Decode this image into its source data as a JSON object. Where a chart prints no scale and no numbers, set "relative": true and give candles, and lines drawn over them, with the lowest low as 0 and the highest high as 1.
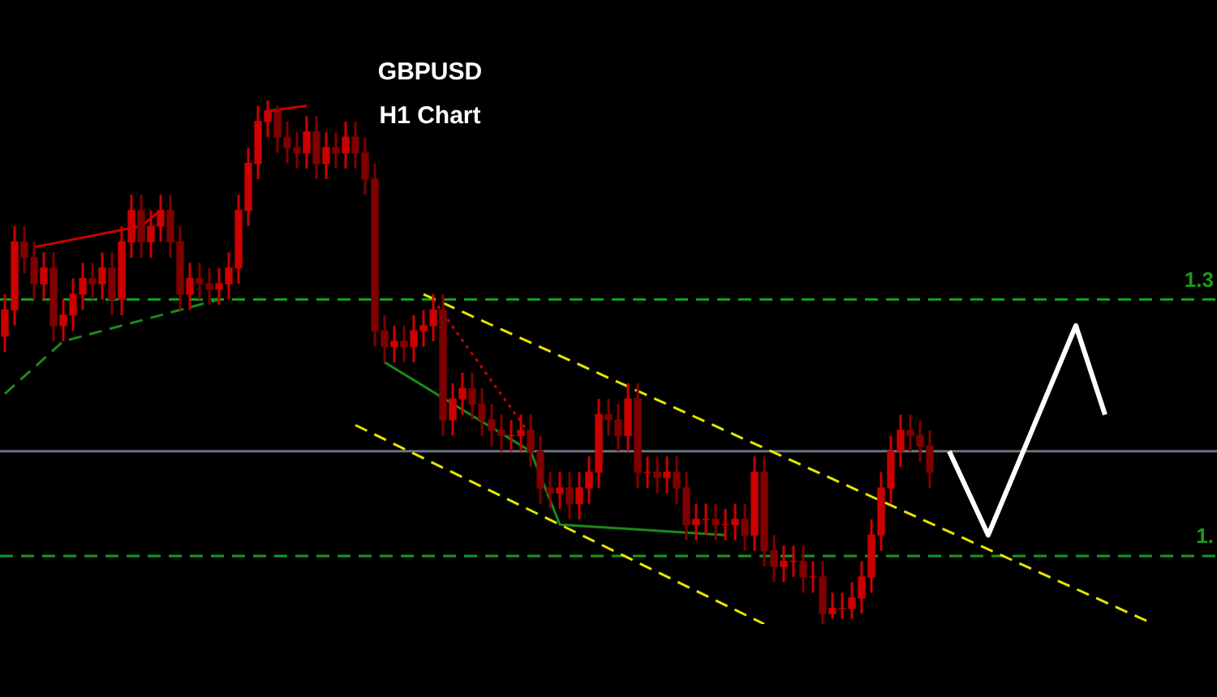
{
  "chart_data": {
    "type": "candlestick",
    "title": "GBPUSD",
    "subtitle": "H1 Chart",
    "relative": true,
    "tick_labels": false,
    "legend": false,
    "colors": [
      "#cc0000",
      "#cc0000",
      "#7e0000",
      "#7e0000",
      "#cc0000",
      "#7e0000",
      "#cc0000",
      "#cc0000",
      "#cc0000",
      "#7e0000",
      "#cc0000",
      "#7e0000",
      "#cc0000",
      "#cc0000",
      "#7e0000",
      "#cc0000",
      "#cc0000",
      "#7e0000",
      "#7e0000",
      "#cc0000",
      "#7e0000",
      "#7e0000",
      "#cc0000",
      "#cc0000",
      "#cc0000",
      "#cc0000",
      "#cc0000",
      "#cc0000",
      "#7e0000",
      "#7e0000",
      "#7e0000",
      "#cc0000",
      "#7e0000",
      "#cc0000",
      "#7e0000",
      "#cc0000",
      "#7e0000",
      "#7e0000",
      "#7e0000",
      "#7e0000",
      "#cc0000",
      "#7e0000",
      "#cc0000",
      "#cc0000",
      "#cc0000",
      "#7e0000",
      "#cc0000",
      "#cc0000",
      "#7e0000",
      "#7e0000",
      "#7e0000",
      "#7e0000",
      "#cc0000",
      "#cc0000",
      "#7e0000",
      "#7e0000",
      "#7e0000",
      "#cc0000",
      "#7e0000",
      "#cc0000",
      "#cc0000",
      "#cc0000",
      "#7e0000",
      "#7e0000",
      "#cc0000",
      "#7e0000",
      "#cc0000",
      "#7e0000",
      "#cc0000",
      "#7e0000",
      "#7e0000",
      "#cc0000",
      "#cc0000",
      "#7e0000",
      "#cc0000",
      "#cc0000",
      "#7e0000",
      "#cc0000",
      "#7e0000",
      "#7e0000",
      "#cc0000",
      "#cc0000",
      "#7e0000",
      "#cc0000",
      "#7e0000",
      "#cc0000",
      "#cc0000",
      "#cc0000",
      "#cc0000",
      "#cc0000",
      "#cc0000",
      "#cc0000",
      "#cc0000",
      "#7e0000",
      "#7e0000",
      "#7e0000",
      null,
      null,
      null,
      null,
      null,
      null,
      null,
      null,
      null,
      null,
      null,
      null,
      null,
      null,
      null,
      null,
      null,
      null,
      null,
      null,
      null,
      null,
      null,
      null,
      null,
      null,
      null,
      null,
      null
    ],
    "annotations": [
      {
        "text": "1.3",
        "y": 0.62
      },
      {
        "text": "1.",
        "y": 0.13
      }
    ],
    "categories": [
      null,
      null,
      null,
      null,
      null,
      null,
      null,
      null,
      null,
      null,
      null,
      null,
      null,
      null,
      null,
      null,
      null,
      null,
      null,
      null,
      null,
      null,
      null,
      null,
      null,
      null,
      null,
      null,
      null,
      null,
      null,
      null,
      null,
      null,
      null,
      null,
      null,
      null,
      null,
      null,
      null,
      null,
      null,
      null,
      null,
      null,
      null,
      null,
      null,
      null,
      null,
      null,
      null,
      null,
      null,
      null,
      null,
      null,
      null,
      null,
      null,
      null,
      null,
      null,
      null,
      null,
      null,
      null,
      null,
      null,
      null,
      null,
      null,
      null,
      null,
      null,
      null,
      null,
      null,
      null,
      null,
      null,
      null,
      null,
      null,
      null,
      null,
      null,
      null,
      null,
      null,
      null,
      null,
      null,
      null,
      null,
      null,
      null,
      null,
      null,
      null,
      null,
      null,
      null,
      null,
      null,
      null,
      null,
      null,
      null,
      null,
      null,
      null,
      null,
      null,
      null,
      null,
      null,
      null,
      null,
      null,
      null,
      null,
      null,
      null
    ],
    "ohlc": [
      [
        0.55,
        0.63,
        0.52,
        0.6
      ],
      [
        0.6,
        0.76,
        0.57,
        0.73
      ],
      [
        0.73,
        0.76,
        0.67,
        0.7
      ],
      [
        0.7,
        0.73,
        0.62,
        0.65
      ],
      [
        0.65,
        0.71,
        0.62,
        0.68
      ],
      [
        0.68,
        0.71,
        0.54,
        0.57
      ],
      [
        0.57,
        0.62,
        0.54,
        0.59
      ],
      [
        0.59,
        0.66,
        0.56,
        0.63
      ],
      [
        0.63,
        0.69,
        0.6,
        0.66
      ],
      [
        0.66,
        0.69,
        0.62,
        0.65
      ],
      [
        0.65,
        0.71,
        0.62,
        0.68
      ],
      [
        0.68,
        0.71,
        0.59,
        0.62
      ],
      [
        0.62,
        0.76,
        0.59,
        0.73
      ],
      [
        0.73,
        0.82,
        0.7,
        0.79
      ],
      [
        0.79,
        0.82,
        0.7,
        0.73
      ],
      [
        0.73,
        0.79,
        0.7,
        0.76
      ],
      [
        0.76,
        0.82,
        0.73,
        0.79
      ],
      [
        0.79,
        0.82,
        0.7,
        0.73
      ],
      [
        0.73,
        0.76,
        0.6,
        0.63
      ],
      [
        0.63,
        0.69,
        0.6,
        0.66
      ],
      [
        0.66,
        0.69,
        0.62,
        0.65
      ],
      [
        0.65,
        0.68,
        0.61,
        0.64
      ],
      [
        0.64,
        0.68,
        0.61,
        0.65
      ],
      [
        0.65,
        0.71,
        0.62,
        0.68
      ],
      [
        0.68,
        0.82,
        0.65,
        0.79
      ],
      [
        0.79,
        0.91,
        0.76,
        0.88
      ],
      [
        0.88,
        0.99,
        0.85,
        0.96
      ],
      [
        0.96,
        1,
        0.93,
        0.98
      ],
      [
        0.98,
        0.99,
        0.9,
        0.93
      ],
      [
        0.93,
        0.96,
        0.88,
        0.91
      ],
      [
        0.91,
        0.94,
        0.87,
        0.9
      ],
      [
        0.9,
        0.97,
        0.87,
        0.94
      ],
      [
        0.94,
        0.97,
        0.85,
        0.88
      ],
      [
        0.88,
        0.94,
        0.85,
        0.91
      ],
      [
        0.91,
        0.94,
        0.87,
        0.9
      ],
      [
        0.9,
        0.96,
        0.87,
        0.93
      ],
      [
        0.93,
        0.96,
        0.87,
        0.9
      ],
      [
        0.9,
        0.93,
        0.82,
        0.85
      ],
      [
        0.85,
        0.88,
        0.53,
        0.56
      ],
      [
        0.56,
        0.59,
        0.5,
        0.53
      ],
      [
        0.53,
        0.57,
        0.5,
        0.54
      ],
      [
        0.54,
        0.57,
        0.5,
        0.53
      ],
      [
        0.53,
        0.59,
        0.5,
        0.56
      ],
      [
        0.56,
        0.6,
        0.53,
        0.57
      ],
      [
        0.57,
        0.63,
        0.54,
        0.6
      ],
      [
        0.6,
        0.63,
        0.36,
        0.39
      ],
      [
        0.39,
        0.46,
        0.36,
        0.43
      ],
      [
        0.43,
        0.48,
        0.4,
        0.45
      ],
      [
        0.45,
        0.48,
        0.39,
        0.42
      ],
      [
        0.42,
        0.45,
        0.36,
        0.39
      ],
      [
        0.39,
        0.42,
        0.34,
        0.37
      ],
      [
        0.37,
        0.4,
        0.33,
        0.36
      ],
      [
        0.36,
        0.39,
        0.33,
        0.36
      ],
      [
        0.36,
        0.4,
        0.33,
        0.37
      ],
      [
        0.37,
        0.4,
        0.3,
        0.33
      ],
      [
        0.33,
        0.36,
        0.23,
        0.26
      ],
      [
        0.26,
        0.29,
        0.22,
        0.25
      ],
      [
        0.25,
        0.29,
        0.22,
        0.26
      ],
      [
        0.26,
        0.29,
        0.2,
        0.23
      ],
      [
        0.23,
        0.29,
        0.2,
        0.26
      ],
      [
        0.26,
        0.32,
        0.23,
        0.29
      ],
      [
        0.29,
        0.43,
        0.26,
        0.4
      ],
      [
        0.4,
        0.43,
        0.36,
        0.39
      ],
      [
        0.39,
        0.42,
        0.33,
        0.36
      ],
      [
        0.36,
        0.46,
        0.33,
        0.43
      ],
      [
        0.43,
        0.46,
        0.26,
        0.29
      ],
      [
        0.29,
        0.32,
        0.26,
        0.29
      ],
      [
        0.29,
        0.32,
        0.25,
        0.28
      ],
      [
        0.28,
        0.32,
        0.25,
        0.29
      ],
      [
        0.29,
        0.32,
        0.23,
        0.26
      ],
      [
        0.26,
        0.29,
        0.16,
        0.19
      ],
      [
        0.19,
        0.23,
        0.16,
        0.2
      ],
      [
        0.2,
        0.23,
        0.17,
        0.2
      ],
      [
        0.2,
        0.23,
        0.16,
        0.19
      ],
      [
        0.19,
        0.22,
        0.16,
        0.19
      ],
      [
        0.19,
        0.23,
        0.16,
        0.2
      ],
      [
        0.2,
        0.23,
        0.14,
        0.17
      ],
      [
        0.17,
        0.32,
        0.14,
        0.29
      ],
      [
        0.29,
        0.32,
        0.11,
        0.14
      ],
      [
        0.14,
        0.17,
        0.08,
        0.11
      ],
      [
        0.11,
        0.15,
        0.08,
        0.12
      ],
      [
        0.12,
        0.15,
        0.09,
        0.12
      ],
      [
        0.12,
        0.15,
        0.06,
        0.09
      ],
      [
        0.09,
        0.12,
        0.06,
        0.09
      ],
      [
        0.09,
        0.12,
        0,
        0.02
      ],
      [
        0.02,
        0.06,
        0.01,
        0.03
      ],
      [
        0.03,
        0.06,
        0.01,
        0.03
      ],
      [
        0.03,
        0.08,
        0.01,
        0.05
      ],
      [
        0.05,
        0.12,
        0.02,
        0.09
      ],
      [
        0.09,
        0.2,
        0.06,
        0.17
      ],
      [
        0.17,
        0.29,
        0.14,
        0.26
      ],
      [
        0.26,
        0.36,
        0.23,
        0.33
      ],
      [
        0.33,
        0.4,
        0.3,
        0.37
      ],
      [
        0.37,
        0.4,
        0.33,
        0.36
      ],
      [
        0.36,
        0.39,
        0.31,
        0.34
      ],
      [
        0.34,
        0.37,
        0.26,
        0.29
      ],
      null,
      null,
      null,
      null,
      null,
      null,
      null,
      null,
      null,
      null,
      null,
      null,
      null,
      null,
      null,
      null,
      null,
      null,
      null,
      null,
      null,
      null,
      null,
      null,
      null,
      null,
      null,
      null,
      null
    ],
    "series": [
      {
        "type": "line",
        "color": "#e6e600",
        "line_style": "dashed",
        "values": [
          null,
          null,
          null,
          null,
          null,
          null,
          null,
          null,
          null,
          null,
          null,
          null,
          null,
          null,
          null,
          null,
          null,
          null,
          null,
          null,
          null,
          null,
          null,
          null,
          null,
          null,
          null,
          null,
          null,
          null,
          null,
          null,
          null,
          null,
          null,
          null,
          null,
          null,
          null,
          null,
          null,
          null,
          null,
          0.63,
          null,
          null,
          null,
          null,
          null,
          null,
          null,
          null,
          null,
          null,
          null,
          null,
          null,
          null,
          null,
          null,
          null,
          null,
          null,
          null,
          null,
          null,
          null,
          null,
          null,
          null,
          null,
          null,
          null,
          null,
          null,
          null,
          null,
          null,
          null,
          null,
          null,
          null,
          null,
          null,
          null,
          null,
          null,
          null,
          null,
          null,
          null,
          null,
          null,
          null,
          null,
          null,
          null,
          null,
          null,
          null,
          null,
          null,
          null,
          null,
          null,
          null,
          null,
          null,
          null,
          null,
          null,
          null,
          null,
          null,
          null,
          null,
          null,
          null,
          0,
          null,
          null,
          null,
          null,
          null,
          null
        ]
      },
      {
        "type": "line",
        "color": "#e6e600",
        "line_style": "dashed",
        "values": [
          null,
          null,
          null,
          null,
          null,
          null,
          null,
          null,
          null,
          null,
          null,
          null,
          null,
          null,
          null,
          null,
          null,
          null,
          null,
          null,
          null,
          null,
          null,
          null,
          null,
          null,
          null,
          null,
          null,
          null,
          null,
          null,
          null,
          null,
          null,
          null,
          0.38,
          null,
          null,
          null,
          null,
          null,
          null,
          null,
          null,
          null,
          null,
          null,
          null,
          null,
          null,
          null,
          null,
          null,
          null,
          null,
          null,
          null,
          null,
          null,
          null,
          null,
          null,
          null,
          null,
          null,
          null,
          null,
          null,
          null,
          null,
          null,
          null,
          null,
          null,
          null,
          null,
          null,
          0,
          null,
          null,
          null,
          null,
          null,
          null,
          null,
          null,
          null,
          null,
          null,
          null,
          null,
          null,
          null,
          null,
          null,
          null,
          null,
          null,
          null,
          null,
          null,
          null,
          null,
          null,
          null,
          null,
          null,
          null,
          null,
          null,
          null,
          null,
          null,
          null,
          null,
          null,
          null,
          null,
          null,
          null,
          null,
          null,
          null,
          null
        ]
      },
      {
        "type": "line",
        "color": "#ffffff",
        "line_style": "solid",
        "values": [
          null,
          null,
          null,
          null,
          null,
          null,
          null,
          null,
          null,
          null,
          null,
          null,
          null,
          null,
          null,
          null,
          null,
          null,
          null,
          null,
          null,
          null,
          null,
          null,
          null,
          null,
          null,
          null,
          null,
          null,
          null,
          null,
          null,
          null,
          null,
          null,
          null,
          null,
          null,
          null,
          null,
          null,
          null,
          null,
          null,
          null,
          null,
          null,
          null,
          null,
          null,
          null,
          null,
          null,
          null,
          null,
          null,
          null,
          null,
          null,
          null,
          null,
          null,
          null,
          null,
          null,
          null,
          null,
          null,
          null,
          null,
          null,
          null,
          null,
          null,
          null,
          null,
          null,
          null,
          null,
          null,
          null,
          null,
          null,
          null,
          null,
          null,
          null,
          null,
          null,
          null,
          null,
          null,
          null,
          null,
          null,
          null,
          0.33,
          null,
          null,
          null,
          0.17,
          null,
          null,
          null,
          null,
          null,
          null,
          null,
          null,
          0.57,
          null,
          null,
          0.4,
          null,
          null,
          null,
          null,
          null,
          null,
          null,
          null,
          null,
          null,
          null
        ]
      },
      {
        "type": "line",
        "color": "#cc0000",
        "line_style": "solid",
        "values": [
          null,
          null,
          null,
          0.72,
          null,
          null,
          null,
          null,
          null,
          null,
          null,
          null,
          null,
          null,
          0.76,
          null,
          0.79,
          null,
          null,
          null,
          null,
          null,
          null,
          null,
          null,
          null,
          null,
          null,
          null,
          null,
          null,
          null,
          null,
          null,
          null,
          null,
          null,
          null,
          null,
          null,
          null,
          null,
          null,
          null,
          null,
          null,
          null,
          null,
          null,
          null,
          null,
          null,
          null,
          null,
          null,
          null,
          null,
          null,
          null,
          null,
          null,
          null,
          null,
          null,
          null,
          null,
          null,
          null,
          null,
          null,
          null,
          null,
          null,
          null,
          null,
          null,
          null,
          null,
          null,
          null,
          null,
          null,
          null,
          null,
          null,
          null,
          null,
          null,
          null,
          null,
          null,
          null,
          null,
          null,
          null,
          null,
          null,
          null,
          null,
          null,
          null,
          null,
          null,
          null,
          null,
          null,
          null,
          null,
          null,
          null,
          null,
          null,
          null,
          null,
          null,
          null,
          null,
          null,
          null,
          null,
          null,
          null,
          null,
          null,
          null
        ]
      },
      {
        "type": "line",
        "color": "#cc0000",
        "line_style": "solid",
        "values": [
          null,
          null,
          null,
          null,
          null,
          null,
          null,
          null,
          null,
          null,
          null,
          null,
          null,
          null,
          null,
          null,
          null,
          null,
          null,
          null,
          null,
          null,
          null,
          null,
          null,
          null,
          null,
          0.98,
          null,
          null,
          null,
          0.99,
          null,
          null,
          null,
          null,
          null,
          null,
          null,
          null,
          null,
          null,
          null,
          null,
          null,
          null,
          null,
          null,
          null,
          null,
          null,
          null,
          null,
          null,
          null,
          null,
          null,
          null,
          null,
          null,
          null,
          null,
          null,
          null,
          null,
          null,
          null,
          null,
          null,
          null,
          null,
          null,
          null,
          null,
          null,
          null,
          null,
          null,
          null,
          null,
          null,
          null,
          null,
          null,
          null,
          null,
          null,
          null,
          null,
          null,
          null,
          null,
          null,
          null,
          null,
          null,
          null,
          null,
          null,
          null,
          null,
          null,
          null,
          null,
          null,
          null,
          null,
          null,
          null,
          null,
          null,
          null,
          null,
          null,
          null,
          null,
          null,
          null,
          null,
          null,
          null,
          null,
          null,
          null,
          null
        ]
      },
      {
        "type": "line",
        "color": "#cc0000",
        "line_style": "dotted",
        "values": [
          null,
          null,
          null,
          null,
          null,
          null,
          null,
          null,
          null,
          null,
          null,
          null,
          null,
          null,
          null,
          null,
          null,
          null,
          null,
          null,
          null,
          null,
          null,
          null,
          null,
          null,
          null,
          null,
          null,
          null,
          null,
          null,
          null,
          null,
          null,
          null,
          null,
          null,
          null,
          null,
          null,
          null,
          null,
          null,
          0.62,
          null,
          null,
          null,
          null,
          null,
          null,
          null,
          null,
          null,
          0.36,
          null,
          null,
          null,
          null,
          null,
          null,
          null,
          null,
          null,
          null,
          null,
          null,
          null,
          null,
          null,
          null,
          null,
          null,
          null,
          null,
          null,
          null,
          null,
          null,
          null,
          null,
          null,
          null,
          null,
          null,
          null,
          null,
          null,
          null,
          null,
          null,
          null,
          null,
          null,
          null,
          null,
          null,
          null,
          null,
          null,
          null,
          null,
          null,
          null,
          null,
          null,
          null,
          null,
          null,
          null,
          null,
          null,
          null,
          null,
          null,
          null,
          null,
          null,
          null,
          null,
          null,
          null,
          null,
          null,
          null
        ]
      },
      {
        "type": "line",
        "color": "#1a8a1a",
        "line_style": "dashed",
        "values": [
          0.44,
          null,
          null,
          null,
          null,
          null,
          0.54,
          null,
          null,
          null,
          null,
          null,
          null,
          null,
          null,
          null,
          null,
          null,
          null,
          null,
          null,
          null,
          0.62,
          null,
          null,
          null,
          null,
          null,
          null,
          null,
          null,
          null,
          null,
          null,
          null,
          null,
          null,
          null,
          null,
          null,
          null,
          null,
          null,
          null,
          null,
          null,
          null,
          null,
          null,
          null,
          null,
          null,
          null,
          null,
          null,
          null,
          null,
          null,
          null,
          null,
          null,
          null,
          null,
          null,
          null,
          null,
          null,
          null,
          null,
          null,
          null,
          null,
          null,
          null,
          null,
          null,
          null,
          null,
          null,
          null,
          null,
          null,
          null,
          null,
          null,
          null,
          null,
          null,
          null,
          null,
          null,
          null,
          null,
          null,
          null,
          null,
          null,
          null,
          null,
          null,
          null,
          null,
          null,
          null,
          null,
          null,
          null,
          null,
          null,
          null,
          null,
          null,
          null,
          null,
          null,
          null,
          null,
          null,
          null,
          null,
          null,
          null,
          null,
          null,
          null
        ]
      },
      {
        "type": "line",
        "color": "#1a8a1a",
        "line_style": "solid",
        "values": [
          null,
          null,
          null,
          null,
          null,
          null,
          null,
          null,
          null,
          null,
          null,
          null,
          null,
          null,
          null,
          null,
          null,
          null,
          null,
          null,
          null,
          null,
          null,
          null,
          null,
          null,
          null,
          null,
          null,
          null,
          null,
          null,
          null,
          null,
          null,
          null,
          null,
          null,
          null,
          0.5,
          null,
          null,
          null,
          null,
          null,
          null,
          null,
          null,
          null,
          null,
          null,
          null,
          null,
          null,
          0.33,
          null,
          null,
          0.19,
          null,
          null,
          null,
          null,
          null,
          null,
          null,
          null,
          null,
          null,
          null,
          null,
          null,
          null,
          null,
          null,
          0.17,
          null,
          null,
          null,
          null,
          null,
          null,
          null,
          null,
          null,
          null,
          null,
          null,
          null,
          null,
          null,
          null,
          null,
          null,
          null,
          null,
          null,
          null,
          null,
          null,
          null,
          null,
          null,
          null,
          null,
          null,
          null,
          null,
          null,
          null,
          null,
          null,
          null,
          null,
          null,
          null,
          null,
          null,
          null,
          null,
          null,
          null,
          null,
          null,
          null,
          null
        ]
      }
    ],
    "ref_lines": [
      {
        "axis": "y",
        "value": 0.62,
        "color": "#1a9a1a",
        "line_style": "dashed"
      },
      {
        "axis": "y",
        "value": 0.13,
        "color": "#1a9a1a",
        "line_style": "dashed"
      },
      {
        "axis": "y",
        "value": 0.33,
        "color": "#6b7280",
        "line_style": "solid"
      }
    ]
  }
}
